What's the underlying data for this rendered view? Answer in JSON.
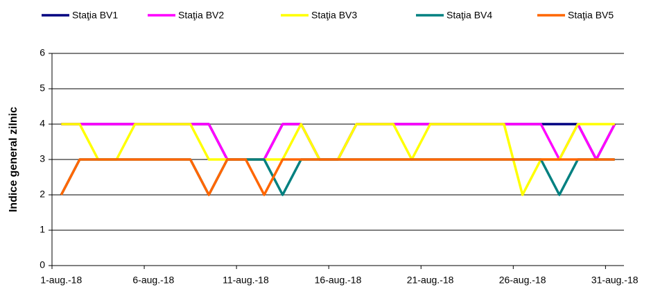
{
  "chart_data": {
    "type": "line",
    "y_label": "Indice general zilnic",
    "categories": [
      "1-aug.-18",
      null,
      null,
      null,
      null,
      "6-aug.-18",
      null,
      null,
      null,
      null,
      "11-aug.-18",
      null,
      null,
      null,
      null,
      "16-aug.-18",
      null,
      null,
      null,
      null,
      "21-aug.-18",
      null,
      null,
      null,
      null,
      "26-aug.-18",
      null,
      null,
      null,
      null,
      "31-aug.-18"
    ],
    "series": [
      {
        "name": "Staţia BV1",
        "color": "#000080",
        "values": [
          4,
          4,
          4,
          4,
          4,
          4,
          4,
          4,
          4,
          3,
          3,
          3,
          4,
          4,
          3,
          3,
          4,
          4,
          4,
          4,
          4,
          4,
          4,
          4,
          4,
          4,
          4,
          4,
          4,
          3,
          4
        ]
      },
      {
        "name": "Staţia BV2",
        "color": "#ff00ff",
        "values": [
          4,
          4,
          4,
          4,
          4,
          4,
          4,
          4,
          4,
          3,
          3,
          3,
          4,
          4,
          3,
          3,
          4,
          4,
          4,
          4,
          4,
          4,
          4,
          4,
          4,
          4,
          4,
          3,
          4,
          3,
          4
        ]
      },
      {
        "name": "Staţia BV3",
        "color": "#ffff00",
        "values": [
          4,
          4,
          3,
          3,
          4,
          4,
          4,
          4,
          3,
          3,
          3,
          3,
          3,
          4,
          3,
          3,
          4,
          4,
          4,
          3,
          4,
          4,
          4,
          4,
          4,
          2,
          3,
          3,
          4,
          4,
          4
        ]
      },
      {
        "name": "Staţia BV4",
        "color": "#008080",
        "values": [
          2,
          3,
          3,
          3,
          3,
          3,
          3,
          3,
          2,
          3,
          3,
          3,
          2,
          3,
          3,
          3,
          3,
          3,
          3,
          3,
          3,
          3,
          3,
          3,
          3,
          3,
          3,
          2,
          3,
          3,
          3
        ]
      },
      {
        "name": "Staţia BV5",
        "color": "#ff6600",
        "values": [
          2,
          3,
          3,
          3,
          3,
          3,
          3,
          3,
          2,
          3,
          3,
          2,
          3,
          3,
          3,
          3,
          3,
          3,
          3,
          3,
          3,
          3,
          3,
          3,
          3,
          3,
          3,
          3,
          3,
          3,
          3
        ]
      }
    ],
    "ylim": [
      0,
      6
    ],
    "yticks": [
      0,
      1,
      2,
      3,
      4,
      5,
      6
    ],
    "grid": true
  }
}
